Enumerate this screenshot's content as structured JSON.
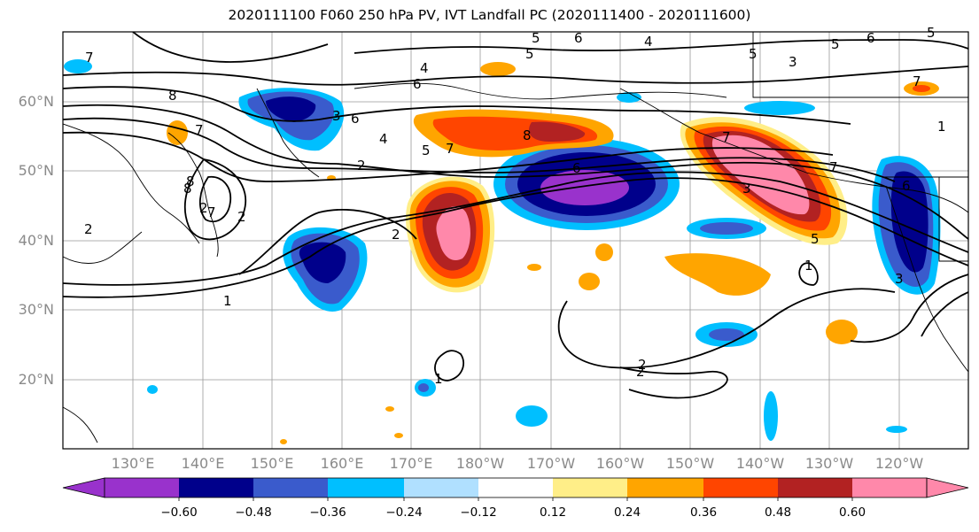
{
  "title": "2020111100 F060 250 hPa PV, IVT Landfall PC (2020111400 - 2020111600)",
  "map": {
    "lat_labels": [
      "60°N",
      "50°N",
      "40°N",
      "30°N",
      "20°N"
    ],
    "lon_labels": [
      "130°E",
      "140°E",
      "150°E",
      "160°E",
      "170°E",
      "180°W",
      "170°W",
      "160°W",
      "150°W",
      "140°W",
      "130°W",
      "120°W"
    ],
    "contour_labels": [
      "7",
      "8",
      "7",
      "8",
      "7",
      "2",
      "2",
      "1",
      "2",
      "1",
      "4",
      "6",
      "4",
      "5",
      "6",
      "7",
      "8",
      "5",
      "6",
      "2",
      "3",
      "4",
      "5",
      "6",
      "7",
      "8",
      "6",
      "5",
      "3",
      "2",
      "1",
      "2",
      "1",
      "5",
      "3",
      "7",
      "5",
      "6",
      "7",
      "5",
      "3",
      "2"
    ]
  },
  "colorbar": {
    "ticks": [
      "−0.60",
      "−0.48",
      "−0.36",
      "−0.24",
      "−0.12",
      "0.12",
      "0.24",
      "0.36",
      "0.48",
      "0.60"
    ],
    "colors": [
      "#9932cc",
      "#00008b",
      "#3a5bcc",
      "#00bfff",
      "#b0e0ff",
      "#ffffff",
      "#ffee88",
      "#ffa500",
      "#ff4500",
      "#b22222",
      "#ff88aa"
    ]
  }
}
